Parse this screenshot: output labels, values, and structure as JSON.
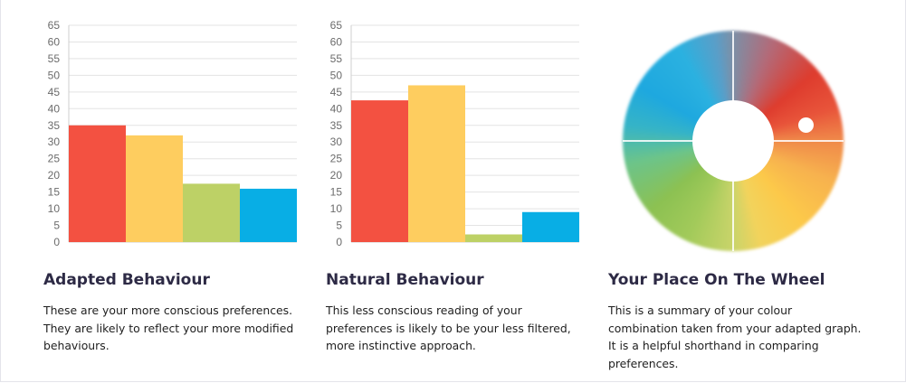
{
  "colors": {
    "red": "#f35141",
    "yellow": "#fecd5f",
    "green": "#bdd166",
    "blue": "#08aee5"
  },
  "chart_data": [
    {
      "type": "bar",
      "categories": [
        "Red",
        "Yellow",
        "Green",
        "Blue"
      ],
      "values": [
        35,
        32,
        17.5,
        16
      ],
      "ylim": [
        0,
        65
      ],
      "yticks": [
        0,
        5,
        10,
        15,
        20,
        25,
        30,
        35,
        40,
        45,
        50,
        55,
        60,
        65
      ],
      "show_x_labels": false,
      "grid": true
    },
    {
      "type": "bar",
      "categories": [
        "Red",
        "Yellow",
        "Green",
        "Blue"
      ],
      "values": [
        42.5,
        47,
        2.3,
        9
      ],
      "ylim": [
        0,
        65
      ],
      "yticks": [
        0,
        5,
        10,
        15,
        20,
        25,
        30,
        35,
        40,
        45,
        50,
        55,
        60,
        65
      ],
      "show_x_labels": false,
      "grid": true
    }
  ],
  "cards": {
    "adapted": {
      "title": "Adapted Behaviour",
      "text": "These are your more conscious preferences. They are likely to reflect your more modified behaviours."
    },
    "natural": {
      "title": "Natural Behaviour",
      "text": "This less conscious reading of your preferences is likely to be your less filtered, more instinctive approach."
    },
    "wheel": {
      "title": "Your Place On The Wheel",
      "text": "This is a summary of your colour combination taken from your adapted graph. It is a helpful shorthand in comparing preferences."
    }
  }
}
